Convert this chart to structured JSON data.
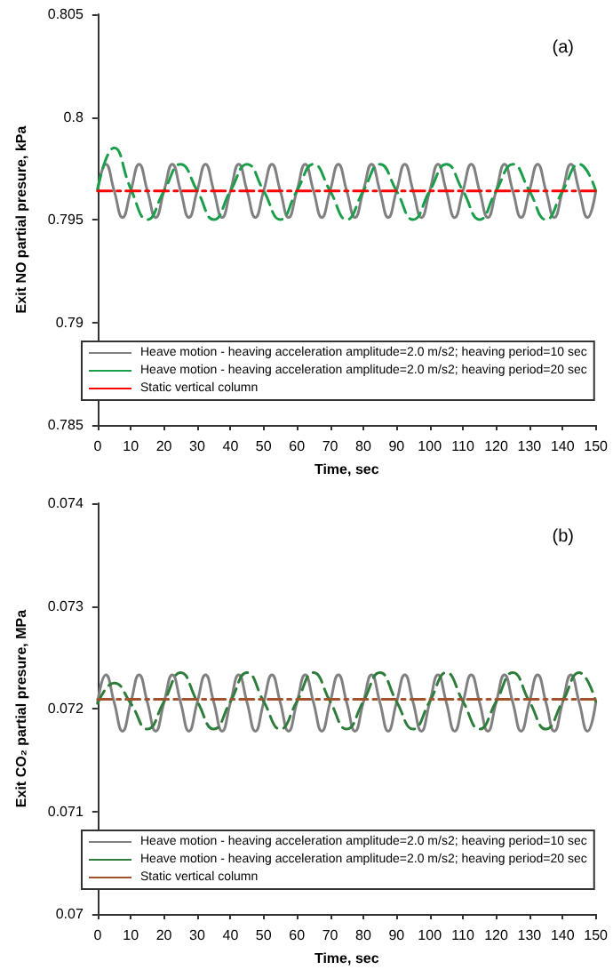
{
  "chart_data": [
    {
      "type": "line",
      "xlabel": "Time, sec",
      "ylabel": "Exit NO partial presure, kPa",
      "annotations": [
        "(a)"
      ],
      "xlim": [
        0,
        150
      ],
      "xticks": [
        0,
        10,
        20,
        30,
        40,
        50,
        60,
        70,
        80,
        90,
        100,
        110,
        120,
        130,
        140,
        150
      ],
      "ylim": [
        0.785,
        0.805
      ],
      "yticks": [
        0.785,
        0.79,
        0.795,
        0.8,
        0.805
      ],
      "grid": false,
      "legend": "bottom",
      "marker": "none",
      "series": [
        {
          "name": "Heave motion - heaving acceleration amplitude=2.0 m/s2; heaving period=10 sec",
          "color": "#808080",
          "line_style": "solid",
          "x": [
            0,
            2.5,
            5,
            7.5,
            10,
            12.5,
            15,
            17.5,
            20,
            22.5,
            25,
            27.5,
            30,
            32.5,
            35,
            37.5,
            40,
            42.5,
            45,
            47.5,
            50,
            52.5,
            55,
            57.5,
            60,
            62.5,
            65,
            67.5,
            70,
            72.5,
            75,
            77.5,
            80,
            82.5,
            85,
            87.5,
            90,
            92.5,
            95,
            97.5,
            100,
            102.5,
            105,
            107.5,
            110,
            112.5,
            115,
            117.5,
            120,
            122.5,
            125,
            127.5,
            130,
            132.5,
            135,
            137.5,
            140,
            142.5,
            145,
            147.5,
            150
          ],
          "values": [
            0.7964,
            0.7977,
            0.7964,
            0.7951,
            0.7964,
            0.7977,
            0.7964,
            0.7951,
            0.7964,
            0.7977,
            0.7964,
            0.7951,
            0.7964,
            0.7977,
            0.7964,
            0.7951,
            0.7964,
            0.7977,
            0.7964,
            0.7951,
            0.7964,
            0.7977,
            0.7964,
            0.7951,
            0.7964,
            0.7977,
            0.7964,
            0.7951,
            0.7964,
            0.7977,
            0.7964,
            0.7951,
            0.7964,
            0.7977,
            0.7964,
            0.7951,
            0.7964,
            0.7977,
            0.7964,
            0.7951,
            0.7964,
            0.7977,
            0.7964,
            0.7951,
            0.7964,
            0.7977,
            0.7964,
            0.7951,
            0.7964,
            0.7977,
            0.7964,
            0.7951,
            0.7964,
            0.7977,
            0.7964,
            0.7951,
            0.7964,
            0.7977,
            0.7964,
            0.7951,
            0.7964
          ]
        },
        {
          "name": "Heave motion - heaving acceleration amplitude=2.0 m/s2; heaving period=20 sec",
          "color": "#1a9e4a",
          "line_style": "dashed",
          "x": [
            0,
            5,
            10,
            15,
            20,
            25,
            30,
            35,
            40,
            45,
            50,
            55,
            60,
            65,
            70,
            75,
            80,
            85,
            90,
            95,
            100,
            105,
            110,
            115,
            120,
            125,
            130,
            135,
            140,
            145,
            150
          ],
          "values": [
            0.7965,
            0.7985,
            0.7965,
            0.795,
            0.7964,
            0.7977,
            0.7964,
            0.795,
            0.7964,
            0.7977,
            0.7964,
            0.795,
            0.7964,
            0.7977,
            0.7964,
            0.795,
            0.7964,
            0.7977,
            0.7964,
            0.795,
            0.7964,
            0.7977,
            0.7964,
            0.795,
            0.7964,
            0.7977,
            0.7964,
            0.795,
            0.7964,
            0.7977,
            0.7964
          ]
        },
        {
          "name": "Static vertical column",
          "color": "#ff0000",
          "line_style": "dashdot",
          "x": [
            0,
            150
          ],
          "values": [
            0.7964,
            0.7964
          ]
        }
      ]
    },
    {
      "type": "line",
      "xlabel": "Time, sec",
      "ylabel": "Exit CO₂ partial presure, MPa",
      "annotations": [
        "(b)"
      ],
      "xlim": [
        0,
        150
      ],
      "xticks": [
        0,
        10,
        20,
        30,
        40,
        50,
        60,
        70,
        80,
        90,
        100,
        110,
        120,
        130,
        140,
        150
      ],
      "ylim": [
        0.07,
        0.074
      ],
      "yticks": [
        0.07,
        0.071,
        0.072,
        0.073,
        0.074
      ],
      "grid": false,
      "legend": "bottom",
      "marker": "none",
      "series": [
        {
          "name": "Heave motion - heaving acceleration amplitude=2.0 m/s2; heaving period=10 sec",
          "color": "#808080",
          "line_style": "solid",
          "x": [
            0,
            2.5,
            5,
            7.5,
            10,
            12.5,
            15,
            17.5,
            20,
            22.5,
            25,
            27.5,
            30,
            32.5,
            35,
            37.5,
            40,
            42.5,
            45,
            47.5,
            50,
            52.5,
            55,
            57.5,
            60,
            62.5,
            65,
            67.5,
            70,
            72.5,
            75,
            77.5,
            80,
            82.5,
            85,
            87.5,
            90,
            92.5,
            95,
            97.5,
            100,
            102.5,
            105,
            107.5,
            110,
            112.5,
            115,
            117.5,
            120,
            122.5,
            125,
            127.5,
            130,
            132.5,
            135,
            137.5,
            140,
            142.5,
            145,
            147.5,
            150
          ],
          "values": [
            0.07206,
            0.07233,
            0.07206,
            0.07178,
            0.07206,
            0.07233,
            0.07206,
            0.07178,
            0.07206,
            0.07233,
            0.07206,
            0.07178,
            0.07206,
            0.07233,
            0.07206,
            0.07178,
            0.07206,
            0.07233,
            0.07206,
            0.07178,
            0.07206,
            0.07233,
            0.07206,
            0.07178,
            0.07206,
            0.07233,
            0.07206,
            0.07178,
            0.07206,
            0.07233,
            0.07206,
            0.07178,
            0.07206,
            0.07233,
            0.07206,
            0.07178,
            0.07206,
            0.07233,
            0.07206,
            0.07178,
            0.07206,
            0.07233,
            0.07206,
            0.07178,
            0.07206,
            0.07233,
            0.07206,
            0.07178,
            0.07206,
            0.07233,
            0.07206,
            0.07178,
            0.07206,
            0.07233,
            0.07206,
            0.07178,
            0.07206,
            0.07233,
            0.07206,
            0.07178,
            0.07206
          ]
        },
        {
          "name": "Heave motion - heaving acceleration amplitude=2.0 m/s2; heaving period=20 sec",
          "color": "#2e7d3a",
          "line_style": "dashed",
          "x": [
            0,
            5,
            10,
            15,
            20,
            25,
            30,
            35,
            40,
            45,
            50,
            55,
            60,
            65,
            70,
            75,
            80,
            85,
            90,
            95,
            100,
            105,
            110,
            115,
            120,
            125,
            130,
            135,
            140,
            145,
            150
          ],
          "values": [
            0.07205,
            0.07225,
            0.07205,
            0.0718,
            0.07207,
            0.07235,
            0.07207,
            0.0718,
            0.07207,
            0.07235,
            0.07207,
            0.0718,
            0.07207,
            0.07235,
            0.07207,
            0.0718,
            0.07207,
            0.07235,
            0.07207,
            0.0718,
            0.07207,
            0.07235,
            0.07207,
            0.0718,
            0.07207,
            0.07235,
            0.07207,
            0.0718,
            0.07207,
            0.07235,
            0.07207
          ]
        },
        {
          "name": "Static vertical column",
          "color": "#a0522d",
          "line_style": "dashdot",
          "x": [
            0,
            150
          ],
          "values": [
            0.07209,
            0.07209
          ]
        }
      ]
    }
  ]
}
